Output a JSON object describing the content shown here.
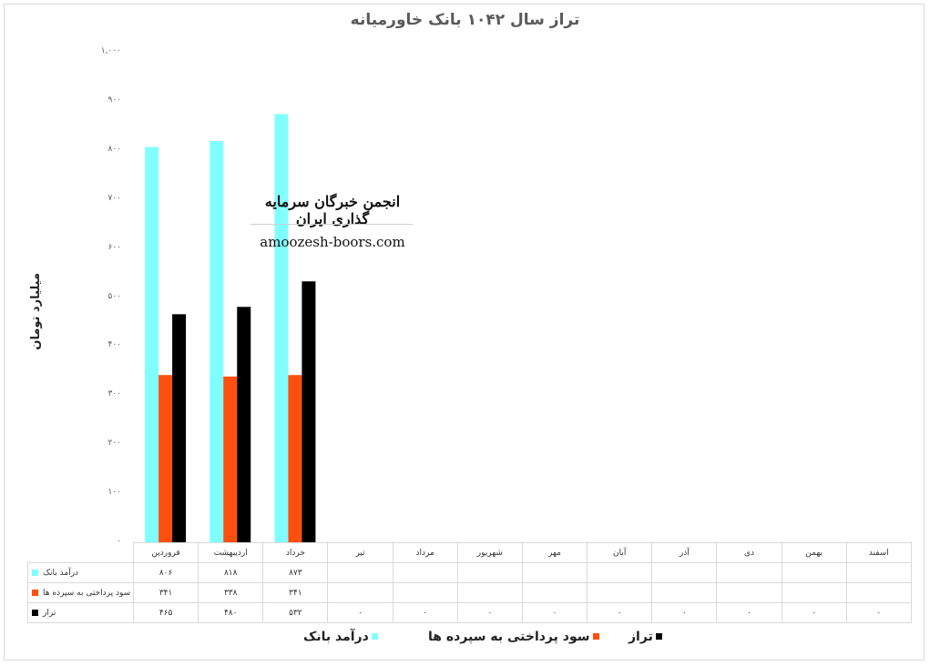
{
  "chart_data": {
    "type": "bar",
    "title": "تراز سال ۱۰۴۲ بانک خاورمیانه",
    "ylabel": "میلیارد تومان",
    "xlabel": "",
    "ylim": [
      0,
      1000
    ],
    "yticks": [
      "۰",
      "۱۰۰",
      "۲۰۰",
      "۳۰۰",
      "۴۰۰",
      "۵۰۰",
      "۶۰۰",
      "۷۰۰",
      "۸۰۰",
      "۹۰۰",
      "۱,۰۰۰"
    ],
    "ytick_values": [
      0,
      100,
      200,
      300,
      400,
      500,
      600,
      700,
      800,
      900,
      1000
    ],
    "categories": [
      "فروردین",
      "اردیبهشت",
      "خرداد",
      "تیر",
      "مرداد",
      "شهریور",
      "مهر",
      "آبان",
      "آذر",
      "دی",
      "بهمن",
      "اسفند"
    ],
    "series": [
      {
        "name": "درآمد بانک",
        "color": "#80FFFF",
        "values": [
          806,
          818,
          873,
          null,
          null,
          null,
          null,
          null,
          null,
          null,
          null,
          null
        ],
        "labels": [
          "۸۰۶",
          "۸۱۸",
          "۸۷۳",
          "",
          "",
          "",
          "",
          "",
          "",
          "",
          "",
          ""
        ]
      },
      {
        "name": "سود پرداختی به سپرده ها",
        "color": "#FF4F0F",
        "values": [
          341,
          338,
          341,
          null,
          null,
          null,
          null,
          null,
          null,
          null,
          null,
          null
        ],
        "labels": [
          "۳۴۱",
          "۳۳۸",
          "۳۴۱",
          "",
          "",
          "",
          "",
          "",
          "",
          "",
          "",
          ""
        ]
      },
      {
        "name": "تراز",
        "color": "#000000",
        "values": [
          465,
          480,
          532,
          0,
          0,
          0,
          0,
          0,
          0,
          0,
          0,
          0
        ],
        "labels": [
          "۴۶۵",
          "۴۸۰",
          "۵۳۲",
          "۰",
          "۰",
          "۰",
          "۰",
          "۰",
          "۰",
          "۰",
          "۰",
          "۰"
        ]
      }
    ],
    "legend_position": "bottom",
    "grid": false,
    "data_table": true
  },
  "watermark": {
    "title": "انجمن خبرگان سرمایه گذاری ایران",
    "site": "amoozesh-boors.com"
  },
  "legend": {
    "items": [
      {
        "label": "درآمد بانک",
        "color": "#80FFFF"
      },
      {
        "label": "سود پرداختی به سپرده ها",
        "color": "#FF4F0F"
      },
      {
        "label": "تراز",
        "color": "#000000"
      }
    ]
  }
}
